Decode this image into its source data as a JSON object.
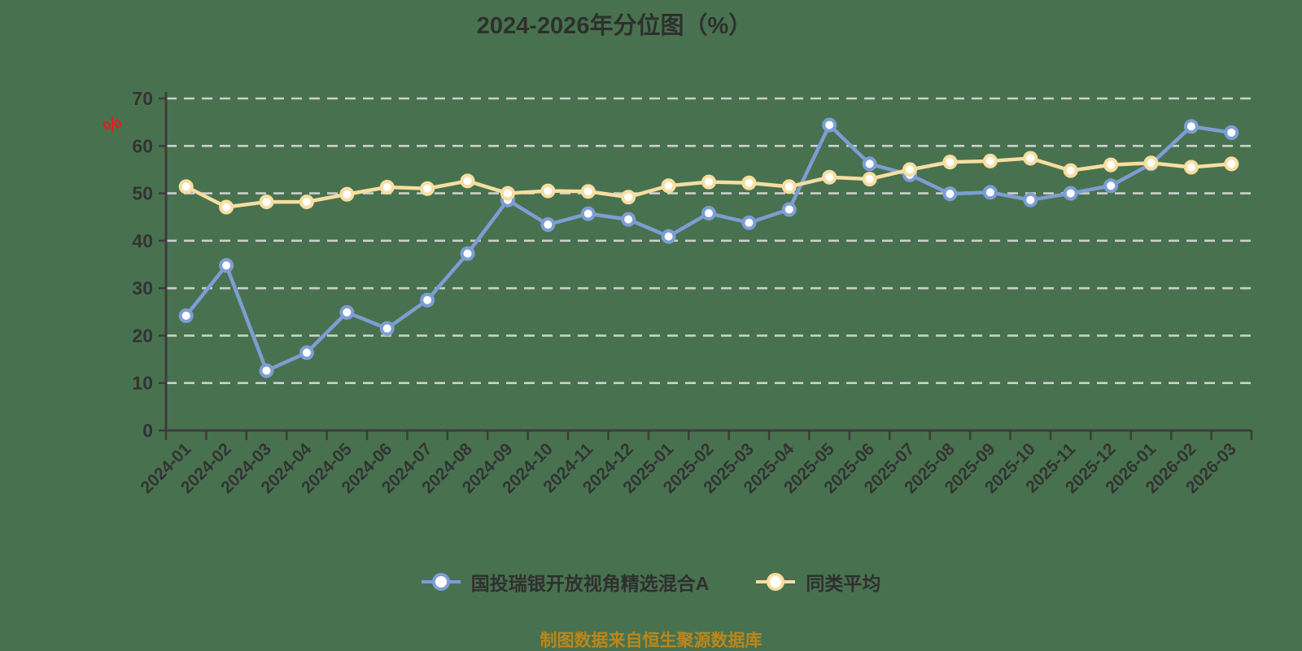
{
  "title": "2024-2026年分位图（%）",
  "unit_label": "%",
  "footer": "制图数据来自恒生聚源数据库",
  "colors": {
    "background": "#48724F",
    "title_text": "#2F2F2F",
    "axis": "#3C3C3C",
    "grid": "#DADADA",
    "tick_label": "#333333",
    "unit_label": "#E01F1F",
    "footer_text": "#BC861B",
    "marker_fill": "#FFFFFF"
  },
  "chart_data": {
    "type": "line",
    "title": "2024-2026年分位图（%）",
    "xlabel": "",
    "ylabel": "%",
    "ylim": [
      0,
      70
    ],
    "y_ticks": [
      0,
      10,
      20,
      30,
      40,
      50,
      60,
      70
    ],
    "grid": "horizontal dashed",
    "legend_position": "bottom",
    "categories": [
      "2024-01",
      "2024-02",
      "2024-03",
      "2024-04",
      "2024-05",
      "2024-06",
      "2024-07",
      "2024-08",
      "2024-09",
      "2024-10",
      "2024-11",
      "2024-12",
      "2025-01",
      "2025-02",
      "2025-03",
      "2025-04",
      "2025-05",
      "2025-06",
      "2025-07",
      "2025-08",
      "2025-09",
      "2025-10",
      "2025-11",
      "2025-12",
      "2026-01",
      "2026-02",
      "2026-03"
    ],
    "series": [
      {
        "name": "国投瑞银开放视角精选混合A",
        "color": "#7D9DD4",
        "values": [
          24.2,
          34.8,
          12.6,
          16.4,
          24.9,
          21.5,
          27.5,
          37.3,
          48.6,
          43.4,
          45.7,
          44.5,
          40.9,
          45.8,
          43.8,
          46.6,
          64.4,
          56.2,
          53.9,
          49.9,
          50.2,
          48.6,
          50.0,
          51.6,
          56.2,
          64.1,
          62.8
        ]
      },
      {
        "name": "同类平均",
        "color": "#F7DEA0",
        "values": [
          51.4,
          47.1,
          48.2,
          48.2,
          49.8,
          51.3,
          51.0,
          52.6,
          50.0,
          50.5,
          50.4,
          49.2,
          51.6,
          52.4,
          52.2,
          51.4,
          53.4,
          53.0,
          55.0,
          56.6,
          56.8,
          57.4,
          54.8,
          56.0,
          56.4,
          55.5,
          56.2
        ]
      }
    ]
  }
}
